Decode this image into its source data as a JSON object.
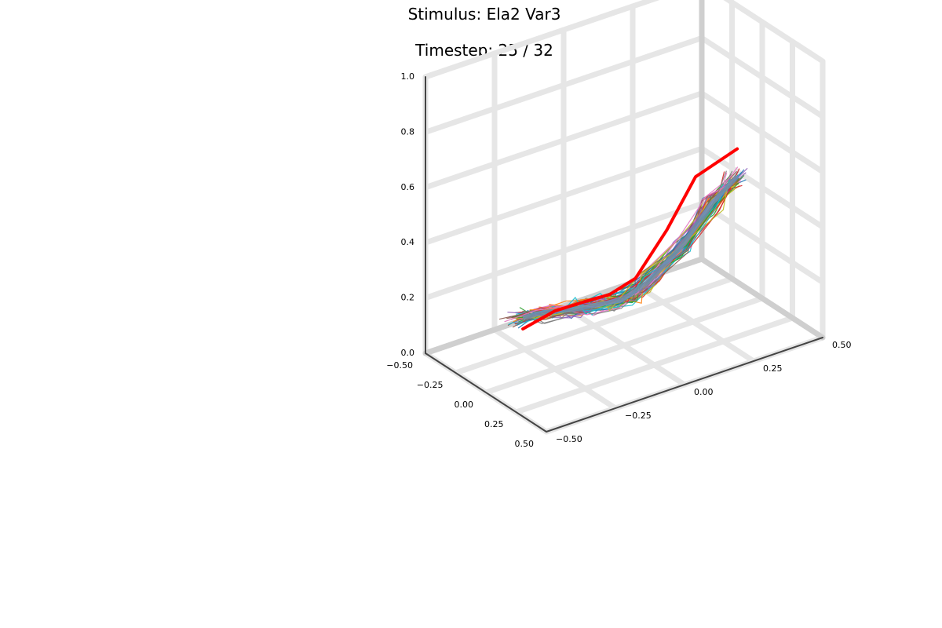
{
  "chart_data": {
    "type": "line",
    "projection": "3d",
    "title": "Stimulus: Ela2 Var3",
    "subtitle": "Timestep: 25 / 32",
    "xlim": [
      -0.5,
      0.5
    ],
    "ylim": [
      -0.5,
      0.5
    ],
    "zlim": [
      0.0,
      1.0
    ],
    "x_ticks": [
      "−0.50",
      "−0.25",
      "0.00",
      "0.25",
      "0.50"
    ],
    "y_ticks": [
      "−0.50",
      "−0.25",
      "0.00",
      "0.25",
      "0.50"
    ],
    "z_ticks": [
      "0.0",
      "0.2",
      "0.4",
      "0.6",
      "0.8",
      "1.0"
    ],
    "grid": true,
    "legend": "none",
    "target_color": "#ff0000",
    "ensemble_colors": [
      "#1f77b4",
      "#ff7f0e",
      "#2ca02c",
      "#d62728",
      "#9467bd",
      "#8c564b",
      "#e377c2",
      "#7f7f7f",
      "#bcbd22",
      "#17becf"
    ],
    "target": {
      "x": [
        0.25,
        0.18,
        0.08,
        -0.02,
        -0.12,
        -0.2,
        -0.3,
        -0.38
      ],
      "y": [
        0.3,
        0.18,
        0.12,
        0.05,
        0.0,
        -0.05,
        -0.12,
        -0.2
      ],
      "z": [
        0.68,
        0.6,
        0.4,
        0.22,
        0.15,
        0.12,
        0.08,
        0.02
      ]
    },
    "mean_trajectory": {
      "x": [
        0.25,
        0.22,
        0.15,
        0.05,
        -0.04,
        -0.14,
        -0.22,
        -0.32,
        -0.38
      ],
      "y": [
        0.3,
        0.22,
        0.14,
        0.06,
        0.01,
        -0.04,
        -0.1,
        -0.15,
        -0.2
      ],
      "z": [
        0.58,
        0.5,
        0.35,
        0.22,
        0.15,
        0.12,
        0.1,
        0.08,
        0.06
      ]
    }
  }
}
